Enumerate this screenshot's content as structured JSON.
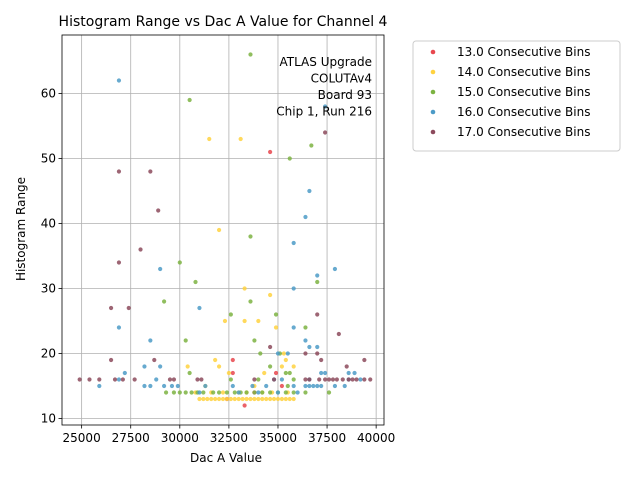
{
  "chart_data": {
    "type": "scatter",
    "title": "Histogram Range vs Dac A Value for Channel 4",
    "xlabel": "Dac A Value",
    "ylabel": "Histogram Range",
    "xlim": [
      24000,
      40400
    ],
    "ylim": [
      9,
      69
    ],
    "xticks": [
      25000,
      27500,
      30000,
      32500,
      35000,
      37500,
      40000
    ],
    "yticks": [
      10,
      20,
      30,
      40,
      50,
      60
    ],
    "grid": true,
    "legend_position": "outside-right",
    "annotation": [
      "ATLAS Upgrade",
      "COLUTAv4",
      "Board 93",
      "Chip 1, Run 216"
    ],
    "series": [
      {
        "name": "13.0 Consecutive Bins",
        "color": "#e8474e",
        "points": [
          [
            33300,
            12
          ],
          [
            34600,
            51
          ],
          [
            32700,
            19
          ],
          [
            32700,
            17
          ],
          [
            34900,
            17
          ],
          [
            35200,
            15
          ],
          [
            32400,
            13
          ],
          [
            33800,
            14
          ]
        ]
      },
      {
        "name": "14.0 Consecutive Bins",
        "color": "#ffd23f",
        "points": [
          [
            31500,
            53
          ],
          [
            33100,
            53
          ],
          [
            32000,
            39
          ],
          [
            33300,
            30
          ],
          [
            34600,
            29
          ],
          [
            35300,
            20
          ],
          [
            33300,
            25
          ],
          [
            32300,
            25
          ],
          [
            34000,
            25
          ],
          [
            34900,
            24
          ],
          [
            31800,
            19
          ],
          [
            35400,
            19
          ],
          [
            30400,
            18
          ],
          [
            32000,
            18
          ],
          [
            35200,
            18
          ],
          [
            35800,
            18
          ],
          [
            32500,
            17
          ],
          [
            34300,
            17
          ],
          [
            31300,
            15
          ],
          [
            33800,
            15
          ],
          [
            31000,
            13
          ],
          [
            31200,
            13
          ],
          [
            31400,
            13
          ],
          [
            31600,
            13
          ],
          [
            31800,
            13
          ],
          [
            32000,
            13
          ],
          [
            32200,
            13
          ],
          [
            32400,
            13
          ],
          [
            32600,
            13
          ],
          [
            32800,
            13
          ],
          [
            33000,
            13
          ],
          [
            33200,
            13
          ],
          [
            33400,
            13
          ],
          [
            33600,
            13
          ],
          [
            33800,
            13
          ],
          [
            34000,
            13
          ],
          [
            34200,
            13
          ],
          [
            34400,
            13
          ],
          [
            34600,
            13
          ],
          [
            34800,
            13
          ],
          [
            35000,
            13
          ],
          [
            35200,
            13
          ],
          [
            35400,
            13
          ],
          [
            35600,
            13
          ],
          [
            35800,
            13
          ],
          [
            30800,
            14
          ],
          [
            31600,
            14
          ],
          [
            32200,
            14
          ],
          [
            33000,
            14
          ],
          [
            33400,
            14
          ],
          [
            34200,
            14
          ],
          [
            34700,
            14
          ],
          [
            35500,
            14
          ]
        ]
      },
      {
        "name": "15.0 Consecutive Bins",
        "color": "#7cb342",
        "points": [
          [
            33600,
            66
          ],
          [
            30500,
            59
          ],
          [
            36700,
            52
          ],
          [
            35600,
            50
          ],
          [
            33600,
            38
          ],
          [
            30000,
            34
          ],
          [
            30800,
            31
          ],
          [
            37000,
            31
          ],
          [
            29200,
            28
          ],
          [
            33600,
            28
          ],
          [
            32600,
            26
          ],
          [
            34900,
            26
          ],
          [
            36400,
            24
          ],
          [
            33800,
            22
          ],
          [
            30300,
            22
          ],
          [
            34100,
            20
          ],
          [
            35100,
            20
          ],
          [
            35400,
            17
          ],
          [
            35600,
            17
          ],
          [
            30500,
            17
          ],
          [
            34000,
            16
          ],
          [
            32600,
            16
          ],
          [
            29300,
            14
          ],
          [
            29700,
            14
          ],
          [
            30000,
            14
          ],
          [
            30300,
            14
          ],
          [
            30600,
            14
          ],
          [
            30900,
            14
          ],
          [
            31200,
            14
          ],
          [
            31700,
            14
          ],
          [
            32000,
            14
          ],
          [
            32400,
            14
          ],
          [
            32800,
            14
          ],
          [
            33100,
            14
          ],
          [
            33400,
            14
          ],
          [
            33800,
            14
          ],
          [
            34200,
            14
          ],
          [
            34600,
            14
          ],
          [
            35000,
            14
          ],
          [
            35400,
            14
          ],
          [
            35800,
            14
          ],
          [
            36400,
            14
          ],
          [
            37600,
            14
          ],
          [
            35500,
            15
          ],
          [
            34600,
            18
          ],
          [
            35800,
            16
          ]
        ]
      },
      {
        "name": "16.0 Consecutive Bins",
        "color": "#4c9bc7",
        "points": [
          [
            26900,
            62
          ],
          [
            37400,
            58
          ],
          [
            36600,
            45
          ],
          [
            36400,
            41
          ],
          [
            35800,
            37
          ],
          [
            37900,
            33
          ],
          [
            29000,
            33
          ],
          [
            37000,
            32
          ],
          [
            35800,
            30
          ],
          [
            31000,
            27
          ],
          [
            26900,
            24
          ],
          [
            35800,
            24
          ],
          [
            28500,
            22
          ],
          [
            36400,
            22
          ],
          [
            36600,
            21
          ],
          [
            37000,
            21
          ],
          [
            28200,
            18
          ],
          [
            29000,
            18
          ],
          [
            35000,
            20
          ],
          [
            35500,
            20
          ],
          [
            27200,
            17
          ],
          [
            37200,
            17
          ],
          [
            37400,
            17
          ],
          [
            38600,
            17
          ],
          [
            38900,
            17
          ],
          [
            25900,
            15
          ],
          [
            28200,
            15
          ],
          [
            28500,
            15
          ],
          [
            29200,
            15
          ],
          [
            29600,
            15
          ],
          [
            29900,
            15
          ],
          [
            31300,
            15
          ],
          [
            32700,
            15
          ],
          [
            33700,
            15
          ],
          [
            34400,
            15
          ],
          [
            35800,
            15
          ],
          [
            36400,
            15
          ],
          [
            36600,
            15
          ],
          [
            36800,
            15
          ],
          [
            37000,
            15
          ],
          [
            37200,
            15
          ],
          [
            37900,
            15
          ],
          [
            38400,
            15
          ],
          [
            26900,
            16
          ],
          [
            28800,
            16
          ],
          [
            34800,
            16
          ],
          [
            35200,
            16
          ],
          [
            36600,
            16
          ],
          [
            38600,
            16
          ],
          [
            39200,
            16
          ],
          [
            31000,
            14
          ],
          [
            33000,
            14
          ],
          [
            34000,
            14
          ],
          [
            35000,
            14
          ],
          [
            36000,
            14
          ]
        ]
      },
      {
        "name": "17.0 Consecutive Bins",
        "color": "#8c4a5c",
        "points": [
          [
            37400,
            54
          ],
          [
            26900,
            48
          ],
          [
            28500,
            48
          ],
          [
            28900,
            42
          ],
          [
            28000,
            36
          ],
          [
            26900,
            34
          ],
          [
            27400,
            27
          ],
          [
            26500,
            27
          ],
          [
            37000,
            26
          ],
          [
            38100,
            23
          ],
          [
            34600,
            21
          ],
          [
            26500,
            19
          ],
          [
            28700,
            19
          ],
          [
            37200,
            19
          ],
          [
            36400,
            20
          ],
          [
            37000,
            20
          ],
          [
            39400,
            19
          ],
          [
            38500,
            18
          ],
          [
            24900,
            16
          ],
          [
            25400,
            16
          ],
          [
            25900,
            16
          ],
          [
            26700,
            16
          ],
          [
            27100,
            16
          ],
          [
            27700,
            16
          ],
          [
            29500,
            16
          ],
          [
            29700,
            16
          ],
          [
            30900,
            16
          ],
          [
            31100,
            16
          ],
          [
            33800,
            16
          ],
          [
            34800,
            16
          ],
          [
            36400,
            16
          ],
          [
            36600,
            16
          ],
          [
            37100,
            16
          ],
          [
            37400,
            16
          ],
          [
            37600,
            16
          ],
          [
            37800,
            16
          ],
          [
            38000,
            16
          ],
          [
            38300,
            16
          ],
          [
            38600,
            16
          ],
          [
            38800,
            16
          ],
          [
            39000,
            16
          ],
          [
            39400,
            16
          ],
          [
            39700,
            16
          ]
        ]
      }
    ]
  }
}
